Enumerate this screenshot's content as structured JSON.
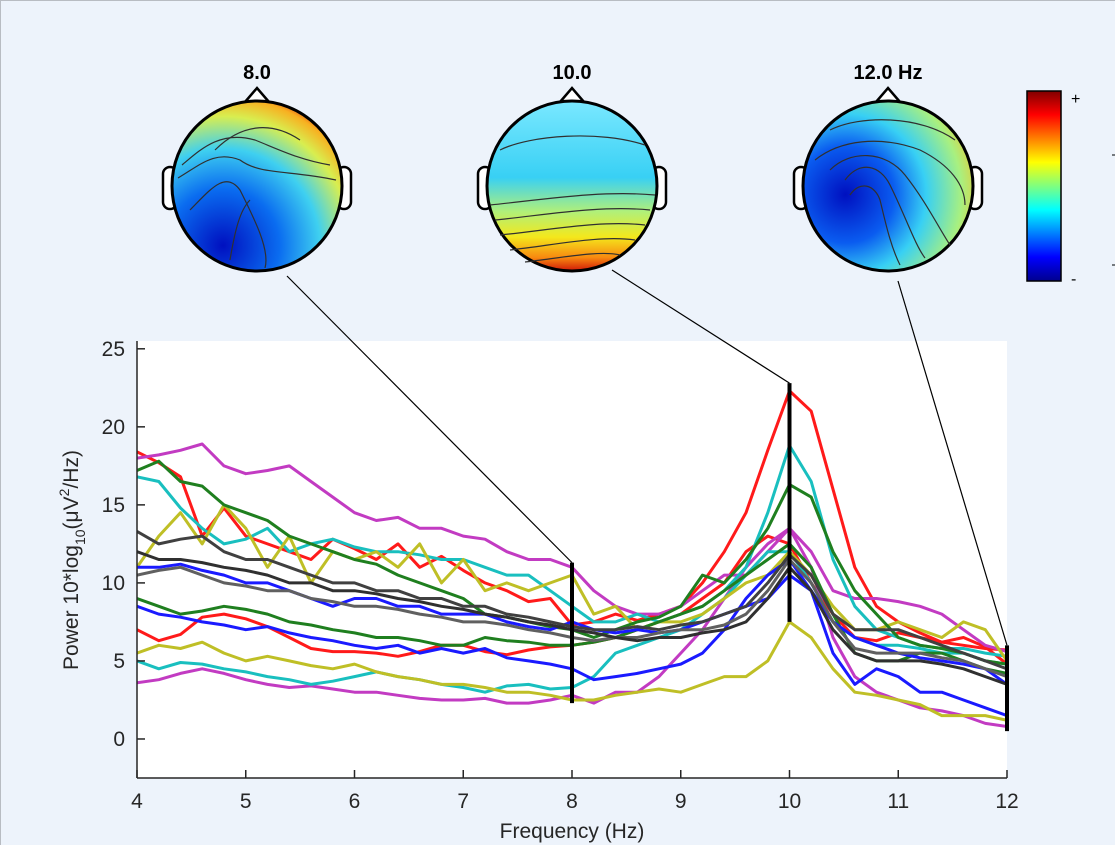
{
  "chart_data": {
    "type": "line",
    "xlabel": "Frequency (Hz)",
    "ylabel_prefix": "Power 10*log",
    "ylabel_sub": "10",
    "ylabel_mid": "(μV",
    "ylabel_sup": "2",
    "ylabel_suffix": "/Hz)",
    "xlim": [
      4,
      12
    ],
    "ylim": [
      -2.5,
      25.5
    ],
    "xticks": [
      4,
      5,
      6,
      7,
      8,
      9,
      10,
      11,
      12
    ],
    "yticks": [
      0,
      5,
      10,
      15,
      20,
      25
    ],
    "x": [
      4.0,
      4.2,
      4.4,
      4.6,
      4.8,
      5.0,
      5.2,
      5.4,
      5.6,
      5.8,
      6.0,
      6.2,
      6.4,
      6.6,
      6.8,
      7.0,
      7.2,
      7.4,
      7.6,
      7.8,
      8.0,
      8.2,
      8.4,
      8.6,
      8.8,
      9.0,
      9.2,
      9.4,
      9.6,
      9.8,
      10.0,
      10.2,
      10.4,
      10.6,
      10.8,
      11.0,
      11.2,
      11.4,
      11.6,
      11.8,
      12.0
    ],
    "markers": [
      {
        "freq": 8,
        "label": "8.0",
        "y_low": 2.3,
        "y_high": 11.3
      },
      {
        "freq": 10,
        "label": "10.0",
        "y_low": 7.5,
        "y_high": 22.8
      },
      {
        "freq": 12,
        "label": "12.0 Hz",
        "y_low": 0.5,
        "y_high": 6.0
      }
    ],
    "colorbar": {
      "plus": "+",
      "minus": "-"
    },
    "series": [
      {
        "name": "red",
        "color": "#ff1a1a",
        "values": [
          18.4,
          17.7,
          16.8,
          13.0,
          14.8,
          13.0,
          12.5,
          12.0,
          11.5,
          12.8,
          12.2,
          11.5,
          12.5,
          11.0,
          11.7,
          10.8,
          10.0,
          9.5,
          8.8,
          9.0,
          7.3,
          7.5,
          8.0,
          7.6,
          8.0,
          8.5,
          10.0,
          12.0,
          14.5,
          18.5,
          22.3,
          21.0,
          16.0,
          11.0,
          8.5,
          7.5,
          6.8,
          6.2,
          6.5,
          5.9,
          4.8
        ]
      },
      {
        "name": "red-low",
        "color": "#ff1a1a",
        "values": [
          7.0,
          6.3,
          6.7,
          7.8,
          8.0,
          7.7,
          7.2,
          6.5,
          5.8,
          5.6,
          5.6,
          5.5,
          5.3,
          5.6,
          6.0,
          6.0,
          5.6,
          5.4,
          5.7,
          5.9,
          6.0,
          6.2,
          6.5,
          7.0,
          7.5,
          8.0,
          9.0,
          10.0,
          12.0,
          13.0,
          12.5,
          10.0,
          8.0,
          6.5,
          6.3,
          6.8,
          6.5,
          6.2,
          6.0,
          5.8,
          5.7
        ]
      },
      {
        "name": "magenta",
        "color": "#c23bc2",
        "values": [
          18.0,
          18.2,
          18.5,
          18.9,
          17.5,
          17.0,
          17.2,
          17.5,
          16.5,
          15.5,
          14.5,
          14.0,
          14.2,
          13.5,
          13.5,
          13.0,
          12.8,
          12.0,
          11.5,
          11.5,
          11.0,
          9.5,
          8.5,
          8.0,
          8.0,
          8.5,
          9.5,
          10.5,
          10.5,
          12.0,
          13.5,
          12.0,
          9.5,
          9.0,
          9.0,
          8.8,
          8.5,
          8.0,
          7.0,
          6.0,
          5.6
        ]
      },
      {
        "name": "magenta-low",
        "color": "#c23bc2",
        "values": [
          3.6,
          3.8,
          4.2,
          4.5,
          4.2,
          3.8,
          3.5,
          3.3,
          3.4,
          3.2,
          3.0,
          3.0,
          2.8,
          2.6,
          2.5,
          2.5,
          2.6,
          2.3,
          2.3,
          2.5,
          2.8,
          2.3,
          3.0,
          3.0,
          4.0,
          5.5,
          7.0,
          9.0,
          11.0,
          12.5,
          13.5,
          11.0,
          6.5,
          4.0,
          3.0,
          2.5,
          2.0,
          1.8,
          1.5,
          1.0,
          0.8
        ]
      },
      {
        "name": "cyan",
        "color": "#19bfbf",
        "values": [
          16.8,
          16.5,
          14.8,
          13.5,
          12.5,
          12.8,
          13.5,
          12.0,
          12.5,
          12.8,
          12.3,
          12.0,
          12.0,
          11.8,
          11.5,
          11.5,
          11.0,
          10.5,
          10.5,
          9.5,
          8.5,
          7.5,
          7.5,
          8.0,
          7.5,
          8.0,
          8.5,
          9.5,
          11.0,
          14.5,
          18.8,
          16.5,
          11.5,
          8.5,
          7.0,
          6.5,
          6.0,
          5.8,
          5.8,
          5.5,
          5.3
        ]
      },
      {
        "name": "cyan-low",
        "color": "#19bfbf",
        "values": [
          5.0,
          4.5,
          4.9,
          4.8,
          4.5,
          4.3,
          4.0,
          3.8,
          3.5,
          3.7,
          4.0,
          4.3,
          4.0,
          3.8,
          3.5,
          3.3,
          3.0,
          3.4,
          3.5,
          3.2,
          3.3,
          4.0,
          5.5,
          6.0,
          6.5,
          7.0,
          8.0,
          9.0,
          10.5,
          12.0,
          12.0,
          10.0,
          7.5,
          6.5,
          6.0,
          6.0,
          5.8,
          5.5,
          5.5,
          5.0,
          4.8
        ]
      },
      {
        "name": "olive",
        "color": "#bfbf26",
        "values": [
          11.0,
          13.0,
          14.5,
          12.5,
          15.0,
          13.5,
          11.0,
          13.0,
          10.0,
          12.0,
          11.5,
          12.0,
          11.0,
          12.5,
          10.0,
          11.5,
          9.5,
          10.0,
          9.5,
          10.0,
          10.5,
          8.0,
          8.5,
          7.0,
          7.5,
          7.5,
          8.0,
          9.0,
          10.0,
          10.5,
          12.0,
          10.5,
          8.5,
          7.0,
          7.0,
          7.5,
          7.0,
          6.5,
          7.5,
          7.0,
          5.0
        ]
      },
      {
        "name": "olive-low",
        "color": "#bfbf26",
        "values": [
          5.5,
          6.0,
          5.8,
          6.2,
          5.5,
          5.0,
          5.3,
          5.0,
          4.7,
          4.5,
          4.8,
          4.3,
          4.0,
          3.8,
          3.5,
          3.5,
          3.3,
          3.0,
          3.0,
          2.8,
          2.5,
          2.5,
          2.8,
          3.0,
          3.2,
          3.0,
          3.5,
          4.0,
          4.0,
          5.0,
          7.5,
          6.5,
          4.5,
          3.0,
          2.8,
          2.5,
          2.2,
          1.5,
          1.5,
          1.5,
          1.2
        ]
      },
      {
        "name": "green",
        "color": "#1f7f1f",
        "values": [
          17.2,
          17.8,
          16.5,
          16.2,
          15.0,
          14.5,
          14.0,
          13.0,
          12.5,
          12.0,
          11.5,
          11.2,
          10.5,
          10.0,
          9.5,
          9.0,
          8.0,
          7.8,
          7.5,
          7.2,
          7.0,
          6.5,
          7.0,
          7.5,
          7.8,
          8.5,
          10.5,
          10.0,
          11.5,
          13.5,
          16.3,
          15.5,
          12.0,
          9.5,
          8.0,
          6.5,
          6.0,
          5.8,
          5.5,
          5.0,
          4.8
        ]
      },
      {
        "name": "green-low",
        "color": "#1f7f1f",
        "values": [
          9.0,
          8.5,
          8.0,
          8.2,
          8.5,
          8.3,
          8.0,
          7.5,
          7.3,
          7.0,
          6.8,
          6.5,
          6.5,
          6.3,
          6.0,
          6.0,
          6.5,
          6.3,
          6.2,
          6.0,
          6.0,
          6.2,
          6.5,
          7.0,
          7.5,
          8.0,
          8.5,
          9.5,
          10.5,
          11.5,
          12.5,
          11.0,
          8.0,
          5.5,
          5.0,
          5.0,
          5.5,
          5.5,
          5.0,
          4.5,
          4.2
        ]
      },
      {
        "name": "blue",
        "color": "#1a1aff",
        "values": [
          11.0,
          11.0,
          11.2,
          10.8,
          10.5,
          10.0,
          10.0,
          9.5,
          9.0,
          8.5,
          9.0,
          9.0,
          8.5,
          8.5,
          8.0,
          8.0,
          8.0,
          7.5,
          7.2,
          7.0,
          7.5,
          7.0,
          6.8,
          7.0,
          6.8,
          7.0,
          7.5,
          8.0,
          8.5,
          9.0,
          10.5,
          9.5,
          7.5,
          6.5,
          6.0,
          5.5,
          5.2,
          5.0,
          4.8,
          4.5,
          3.5
        ]
      },
      {
        "name": "blue-low",
        "color": "#1a1aff",
        "values": [
          8.5,
          8.0,
          7.8,
          7.5,
          7.3,
          7.0,
          7.2,
          6.8,
          6.5,
          6.3,
          6.0,
          5.8,
          6.0,
          5.5,
          5.8,
          5.5,
          5.8,
          5.2,
          5.0,
          4.8,
          4.5,
          3.8,
          4.0,
          4.2,
          4.5,
          4.8,
          5.5,
          7.0,
          9.0,
          10.5,
          11.5,
          9.5,
          5.5,
          3.5,
          4.5,
          4.0,
          3.0,
          3.0,
          2.5,
          2.0,
          1.5
        ]
      },
      {
        "name": "gray",
        "color": "#404040",
        "values": [
          13.3,
          12.5,
          12.8,
          13.0,
          12.0,
          11.5,
          11.5,
          11.0,
          10.5,
          10.0,
          10.0,
          9.5,
          9.5,
          9.0,
          9.0,
          8.5,
          8.5,
          8.0,
          7.8,
          7.5,
          7.2,
          7.0,
          7.0,
          7.2,
          7.0,
          7.3,
          7.5,
          8.0,
          8.5,
          10.0,
          11.8,
          10.5,
          8.0,
          7.0,
          7.0,
          7.0,
          6.5,
          6.0,
          5.5,
          5.0,
          4.5
        ]
      },
      {
        "name": "gray-mid",
        "color": "#606060",
        "values": [
          10.5,
          10.8,
          11.0,
          10.5,
          10.0,
          9.8,
          9.5,
          9.5,
          9.0,
          8.8,
          8.5,
          8.5,
          8.3,
          8.0,
          7.8,
          7.5,
          7.5,
          7.3,
          7.0,
          6.8,
          6.5,
          6.3,
          6.5,
          6.5,
          6.8,
          7.0,
          7.0,
          7.3,
          8.0,
          9.5,
          11.5,
          10.0,
          7.5,
          5.8,
          5.5,
          5.5,
          5.5,
          5.2,
          5.0,
          4.5,
          4.0
        ]
      },
      {
        "name": "gray-dark",
        "color": "#303030",
        "values": [
          12.0,
          11.5,
          11.5,
          11.3,
          11.0,
          10.8,
          10.5,
          10.0,
          10.0,
          9.5,
          9.5,
          9.3,
          9.0,
          8.8,
          8.5,
          8.3,
          8.0,
          7.8,
          7.5,
          7.3,
          7.0,
          6.8,
          6.5,
          6.3,
          6.5,
          6.5,
          6.8,
          7.0,
          7.5,
          9.0,
          11.0,
          9.5,
          7.0,
          5.5,
          5.0,
          5.0,
          5.0,
          4.8,
          4.5,
          4.0,
          3.5
        ]
      }
    ]
  }
}
